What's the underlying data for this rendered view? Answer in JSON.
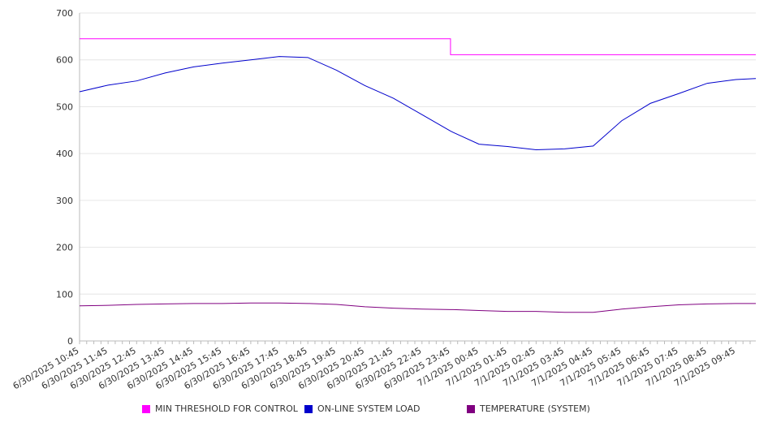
{
  "chart_data": {
    "type": "line",
    "title": "",
    "xlabel": "",
    "ylabel": "",
    "ylim": [
      0,
      700
    ],
    "yticks": [
      0,
      100,
      200,
      300,
      400,
      500,
      600,
      700
    ],
    "xlabels": [
      "6/30/2025 10:45",
      "6/30/2025 11:45",
      "6/30/2025 12:45",
      "6/30/2025 13:45",
      "6/30/2025 14:45",
      "6/30/2025 15:45",
      "6/30/2025 16:45",
      "6/30/2025 17:45",
      "6/30/2025 18:45",
      "6/30/2025 19:45",
      "6/30/2025 20:45",
      "6/30/2025 21:45",
      "6/30/2025 22:45",
      "6/30/2025 23:45",
      "7/1/2025 00:45",
      "7/1/2025 01:45",
      "7/1/2025 02:45",
      "7/1/2025 03:45",
      "7/1/2025 04:45",
      "7/1/2025 05:45",
      "7/1/2025 06:45",
      "7/1/2025 07:45",
      "7/1/2025 08:45",
      "7/1/2025 09:45"
    ],
    "x_hours": [
      0,
      1,
      2,
      3,
      4,
      5,
      6,
      7,
      8,
      9,
      10,
      11,
      12,
      13,
      13.1,
      14,
      15,
      16,
      17,
      18,
      19,
      20,
      21,
      22,
      23,
      23.7
    ],
    "grid": true,
    "legend_position": "bottom",
    "series": [
      {
        "name": "MIN THRESHOLD FOR CONTROL",
        "color": "#ff00ff",
        "values": [
          645,
          645,
          645,
          645,
          645,
          645,
          645,
          645,
          645,
          645,
          645,
          645,
          645,
          645,
          611,
          611,
          611,
          611,
          611,
          611,
          611,
          611,
          611,
          611,
          611,
          611
        ]
      },
      {
        "name": "ON-LINE SYSTEM LOAD",
        "color": "#0000cc",
        "values": [
          532,
          546,
          555,
          572,
          585,
          593,
          600,
          607,
          605,
          578,
          545,
          518,
          483,
          448,
          445,
          420,
          415,
          408,
          410,
          416,
          470,
          507,
          528,
          550,
          558,
          560
        ]
      },
      {
        "name": "TEMPERATURE (SYSTEM)",
        "color": "#800080",
        "values": [
          75,
          76,
          78,
          79,
          80,
          80,
          81,
          81,
          80,
          78,
          73,
          70,
          68,
          67,
          67,
          65,
          63,
          63,
          61,
          61,
          68,
          73,
          77,
          79,
          80,
          80
        ]
      }
    ]
  }
}
